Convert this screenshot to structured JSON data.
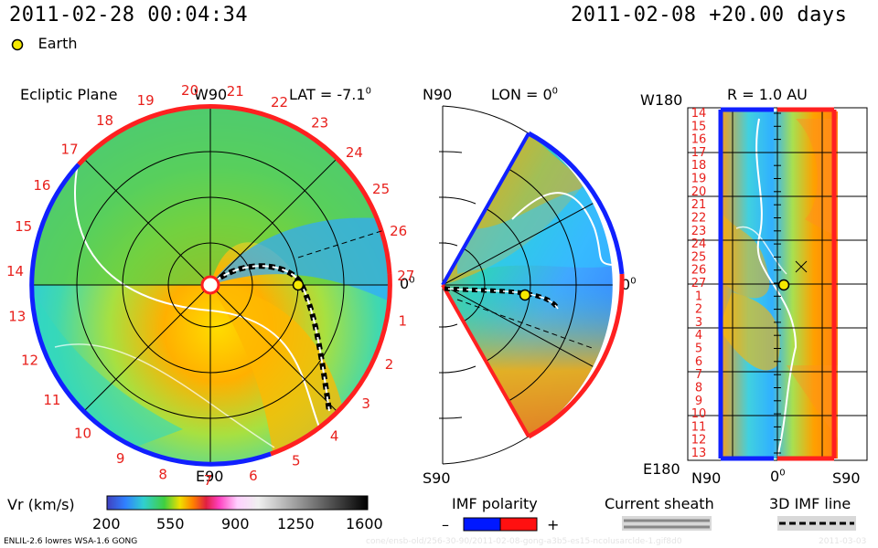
{
  "header": {
    "timestamp": "2011-02-28 00:04:34",
    "forecast": "2011-02-08 +20.00 days",
    "legend_earth": "Earth"
  },
  "panel_ecliptic": {
    "title": "Ecliptic Plane",
    "top_label": "W90",
    "bottom_label": "E90",
    "right_label": "0",
    "right_sup": "0",
    "lat_label": "LAT = -7.1",
    "lat_sup": "0",
    "rotation_numbers": [
      "20",
      "21",
      "22",
      "23",
      "24",
      "25",
      "26",
      "27",
      "1",
      "2",
      "3",
      "4",
      "5",
      "6",
      "7",
      "8",
      "9",
      "10",
      "11",
      "12",
      "13",
      "14",
      "15",
      "16",
      "17",
      "18",
      "19"
    ]
  },
  "panel_meridional": {
    "top_label": "N90",
    "bottom_label": "S90",
    "lon_label": "LON = 0",
    "lon_sup": "0",
    "right_label": "0",
    "right_sup": "0"
  },
  "panel_latlon": {
    "r_label": "R = 1.0 AU",
    "top_label": "W180",
    "bottom_label": "E180",
    "x_left": "N90",
    "x_mid": "0",
    "x_mid_sup": "0",
    "x_right": "S90",
    "rows": [
      "14",
      "15",
      "16",
      "17",
      "18",
      "19",
      "20",
      "21",
      "22",
      "23",
      "24",
      "25",
      "26",
      "27",
      "1",
      "2",
      "3",
      "4",
      "5",
      "6",
      "7",
      "8",
      "9",
      "10",
      "11",
      "12",
      "13"
    ]
  },
  "colorbar": {
    "label": "Vr (km/s)",
    "ticks": [
      "200",
      "550",
      "900",
      "1250",
      "1600"
    ]
  },
  "imf": {
    "label": "IMF polarity",
    "minus": "–",
    "plus": "+",
    "colors": {
      "negative": "#0018ff",
      "positive": "#ff1010"
    }
  },
  "sheath": {
    "label": "Current sheath"
  },
  "imfline": {
    "label": "3D IMF line"
  },
  "footer": {
    "left": "ENLIL-2.6 lowres WSA-1.6 GONG",
    "middle": "cone/ensb-old/256-30-90/2011-02-08-gong-a3b5-es15-ncolusarclde-1.gif8d0",
    "right": "2011-03-03"
  }
}
